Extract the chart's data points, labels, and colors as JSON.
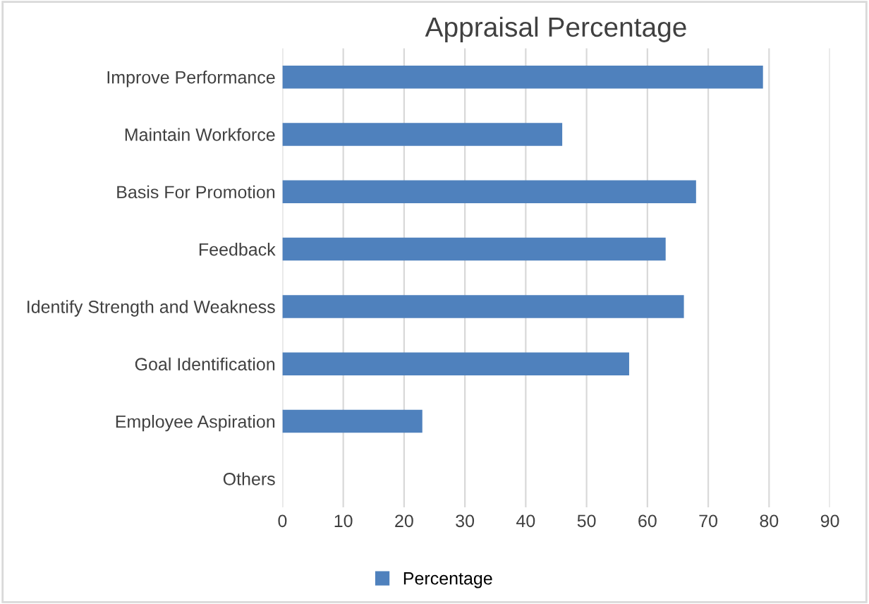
{
  "chart_data": {
    "type": "bar",
    "orientation": "horizontal",
    "title": "Appraisal Percentage",
    "categories": [
      "Improve Performance",
      "Maintain Workforce",
      "Basis For Promotion",
      "Feedback",
      "Identify Strength and Weakness",
      "Goal Identification",
      "Employee Aspiration",
      "Others"
    ],
    "series": [
      {
        "name": "Percentage",
        "color": "#4f81bd",
        "values": [
          79,
          46,
          68,
          63,
          66,
          57,
          23,
          0
        ]
      }
    ],
    "xlim": [
      0,
      90
    ],
    "xticks": [
      0,
      10,
      20,
      30,
      40,
      50,
      60,
      70,
      80,
      90
    ],
    "grid": "x",
    "legend": "bottom"
  }
}
